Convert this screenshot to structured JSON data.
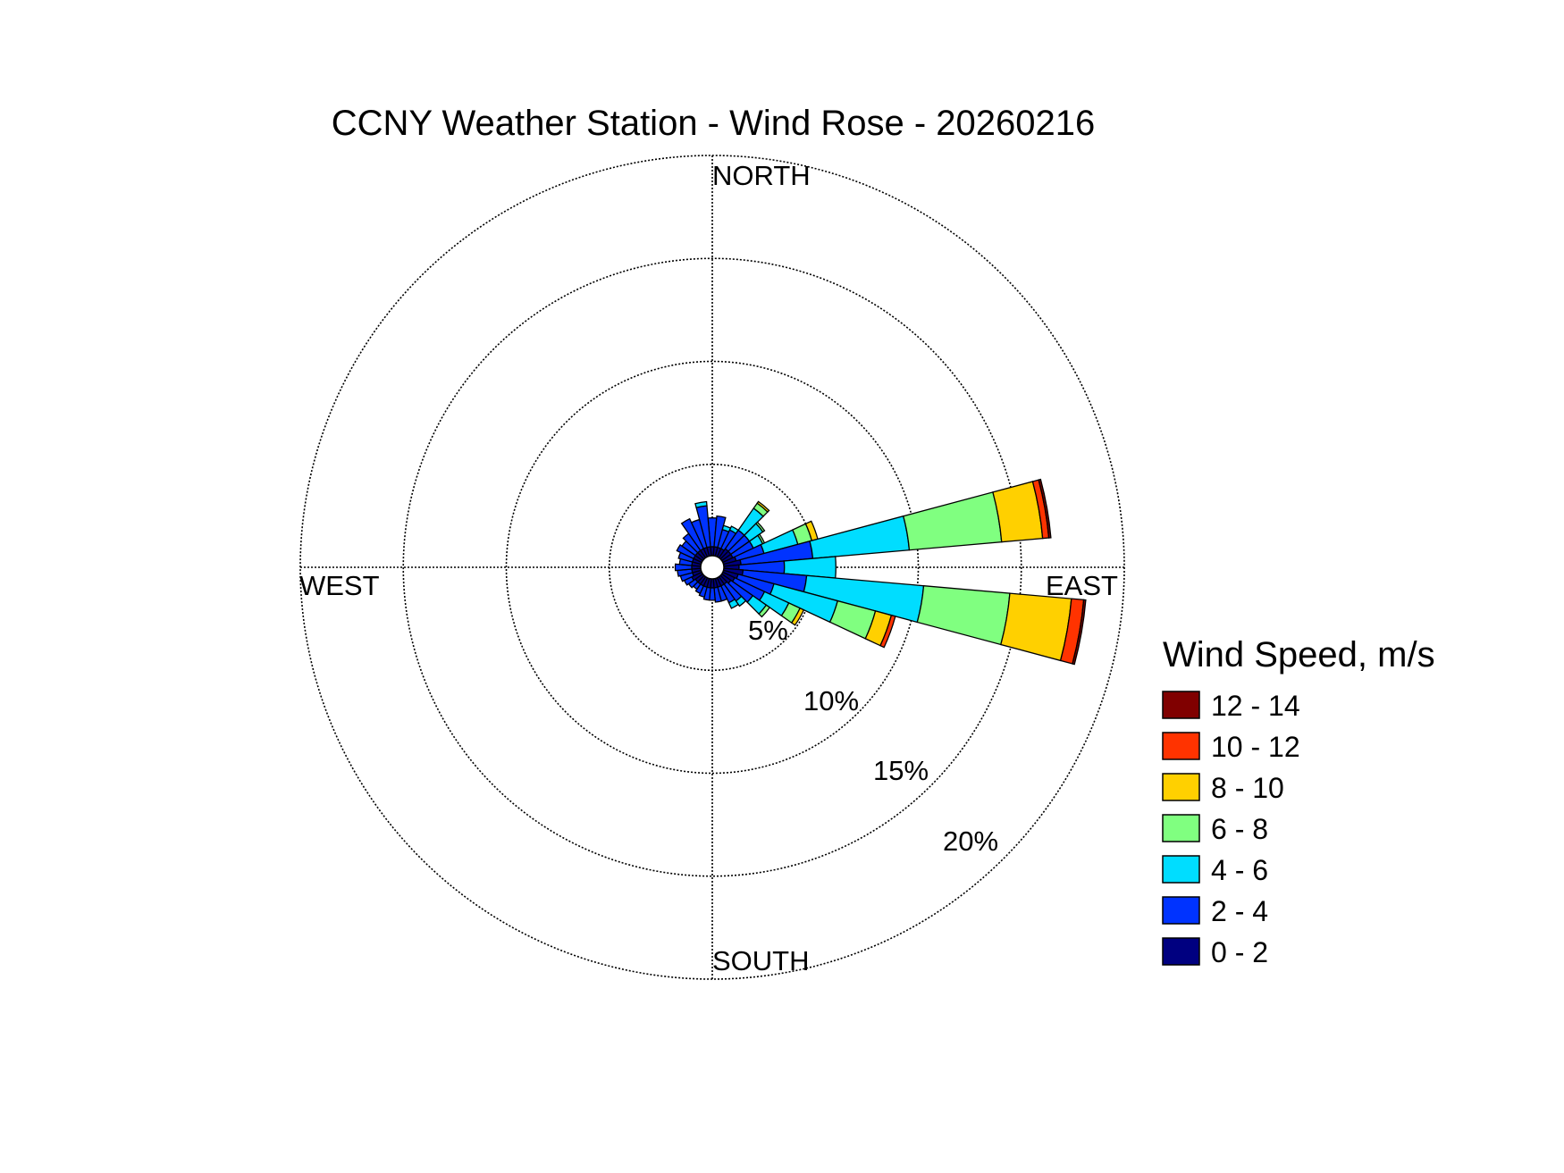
{
  "chart_data": {
    "type": "windrose",
    "title": "CCNY Weather Station - Wind Rose - 20260216",
    "direction_labels": {
      "north": "NORTH",
      "east": "EAST",
      "south": "SOUTH",
      "west": "WEST"
    },
    "radial_ticks": [
      5,
      10,
      15,
      20
    ],
    "radial_tick_labels": [
      "5%",
      "10%",
      "15%",
      "20%"
    ],
    "radial_max": 20,
    "legend": {
      "title": "Wind Speed, m/s",
      "placement": "right",
      "bins": [
        {
          "label": "12 - 14",
          "color": "#800000"
        },
        {
          "label": "10 - 12",
          "color": "#ff3300"
        },
        {
          "label": "8 - 10",
          "color": "#ffd000"
        },
        {
          "label": "6 - 8",
          "color": "#80ff80"
        },
        {
          "label": "4 - 6",
          "color": "#00ddff"
        },
        {
          "label": "2 - 4",
          "color": "#0033ff"
        },
        {
          "label": "0 - 2",
          "color": "#000080"
        }
      ]
    },
    "sector_width_deg": 10,
    "speed_bins_ms": [
      "0 - 2",
      "2 - 4",
      "4 - 6",
      "6 - 8",
      "8 - 10",
      "10 - 12",
      "12 - 14"
    ],
    "sectors": [
      {
        "direction_deg": 0,
        "cumulative_percent": [
          1.0,
          2.4
        ]
      },
      {
        "direction_deg": 10,
        "cumulative_percent": [
          1.0,
          2.5
        ]
      },
      {
        "direction_deg": 20,
        "cumulative_percent": [
          1.0,
          1.9,
          2.1
        ]
      },
      {
        "direction_deg": 30,
        "cumulative_percent": [
          1.0,
          2.0,
          2.2
        ]
      },
      {
        "direction_deg": 40,
        "cumulative_percent": [
          1.1,
          2.2,
          3.5,
          3.8,
          3.9
        ]
      },
      {
        "direction_deg": 50,
        "cumulative_percent": [
          1.1,
          2.2,
          3.0,
          3.1
        ]
      },
      {
        "direction_deg": 60,
        "cumulative_percent": [
          1.1,
          2.2,
          2.7,
          2.8
        ]
      },
      {
        "direction_deg": 70,
        "cumulative_percent": [
          1.2,
          2.6,
          4.3,
          5.0,
          5.3
        ]
      },
      {
        "direction_deg": 80,
        "cumulative_percent": [
          1.4,
          4.9,
          9.6,
          14.1,
          16.1,
          16.4,
          16.5
        ]
      },
      {
        "direction_deg": 90,
        "cumulative_percent": [
          1.3,
          3.5,
          6.0
        ]
      },
      {
        "direction_deg": 100,
        "cumulative_percent": [
          1.5,
          4.6,
          10.3,
          14.5,
          17.5,
          18.1,
          18.2
        ]
      },
      {
        "direction_deg": 110,
        "cumulative_percent": [
          1.3,
          3.1,
          6.3,
          8.2,
          9.0,
          9.2
        ]
      },
      {
        "direction_deg": 120,
        "cumulative_percent": [
          1.2,
          2.8,
          4.1,
          4.7,
          4.9
        ]
      },
      {
        "direction_deg": 130,
        "cumulative_percent": [
          1.1,
          2.4,
          3.2,
          3.4
        ]
      },
      {
        "direction_deg": 140,
        "cumulative_percent": [
          1.0,
          2.0,
          2.3
        ]
      },
      {
        "direction_deg": 150,
        "cumulative_percent": [
          1.0,
          1.9,
          2.2
        ]
      },
      {
        "direction_deg": 160,
        "cumulative_percent": [
          1.0,
          1.7
        ]
      },
      {
        "direction_deg": 170,
        "cumulative_percent": [
          1.0,
          1.7
        ]
      },
      {
        "direction_deg": 180,
        "cumulative_percent": [
          1.0,
          1.6
        ]
      },
      {
        "direction_deg": 190,
        "cumulative_percent": [
          1.0,
          1.6
        ]
      },
      {
        "direction_deg": 200,
        "cumulative_percent": [
          1.0,
          1.5
        ]
      },
      {
        "direction_deg": 210,
        "cumulative_percent": [
          1.0,
          1.4
        ]
      },
      {
        "direction_deg": 220,
        "cumulative_percent": [
          1.0,
          1.3
        ]
      },
      {
        "direction_deg": 230,
        "cumulative_percent": [
          1.0,
          1.4
        ]
      },
      {
        "direction_deg": 240,
        "cumulative_percent": [
          1.1,
          1.5
        ]
      },
      {
        "direction_deg": 250,
        "cumulative_percent": [
          1.0,
          1.6
        ]
      },
      {
        "direction_deg": 260,
        "cumulative_percent": [
          1.0,
          1.7
        ]
      },
      {
        "direction_deg": 270,
        "cumulative_percent": [
          1.0,
          1.8
        ]
      },
      {
        "direction_deg": 280,
        "cumulative_percent": [
          1.0,
          1.6
        ]
      },
      {
        "direction_deg": 290,
        "cumulative_percent": [
          1.0,
          1.7
        ]
      },
      {
        "direction_deg": 300,
        "cumulative_percent": [
          1.0,
          1.9
        ]
      },
      {
        "direction_deg": 310,
        "cumulative_percent": [
          1.0,
          1.8
        ]
      },
      {
        "direction_deg": 320,
        "cumulative_percent": [
          1.0,
          2.0
        ]
      },
      {
        "direction_deg": 330,
        "cumulative_percent": [
          1.0,
          2.6
        ]
      },
      {
        "direction_deg": 340,
        "cumulative_percent": [
          1.0,
          2.4
        ]
      },
      {
        "direction_deg": 350,
        "cumulative_percent": [
          1.0,
          3.0,
          3.2
        ]
      }
    ]
  }
}
